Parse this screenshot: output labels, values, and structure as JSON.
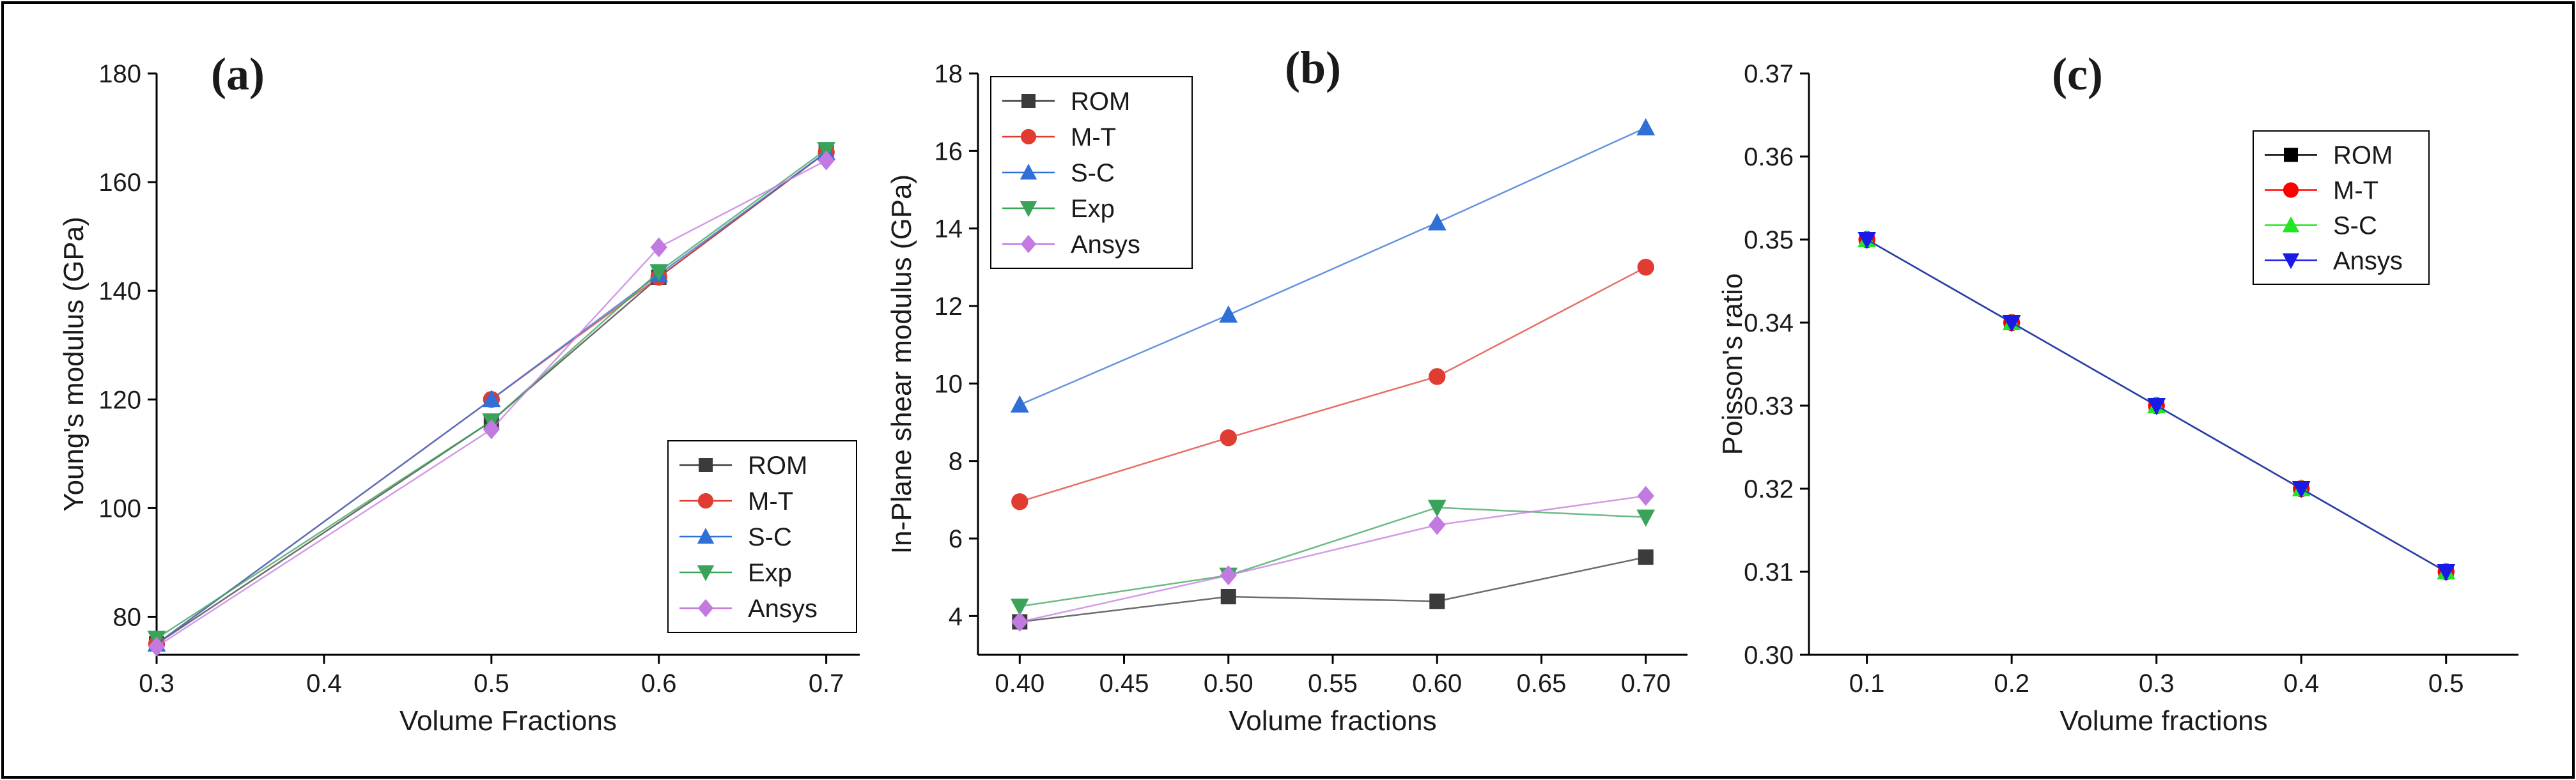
{
  "colors": {
    "ROM": "#3b3b3b",
    "M-T": "#e03c31",
    "S-C": "#2f6fd6",
    "Exp": "#3aa35a",
    "Ansys": "#c27ae0",
    "Ansys_c": "#1a1ae6",
    "S-C_c": "#22e622",
    "ROM_c": "#000000",
    "M-T_c": "#ff0000",
    "axis": "#000000"
  },
  "chart_data": [
    {
      "type": "line",
      "panel_label": "(a)",
      "xlabel": "Volume Fractions",
      "ylabel": "Young's    modulus (GPa)",
      "xlim": [
        0.3,
        0.72
      ],
      "ylim": [
        73,
        180
      ],
      "xticks": [
        0.3,
        0.4,
        0.5,
        0.6,
        0.7
      ],
      "xtick_labels": [
        "0.3",
        "0.4",
        "0.5",
        "0.6",
        "0.7"
      ],
      "yticks": [
        80,
        100,
        120,
        140,
        160,
        180
      ],
      "ytick_labels": [
        "80",
        "100",
        "120",
        "140",
        "160",
        "180"
      ],
      "legend_position": "bottom-right",
      "x": [
        0.3,
        0.5,
        0.6,
        0.7
      ],
      "series": [
        {
          "name": "ROM",
          "marker": "square",
          "values": [
            75,
            116,
            142.5,
            165.5
          ]
        },
        {
          "name": "M-T",
          "marker": "circle",
          "values": [
            75,
            120,
            142.5,
            165.5
          ]
        },
        {
          "name": "S-C",
          "marker": "triangle-up",
          "values": [
            75,
            120,
            143,
            165.5
          ]
        },
        {
          "name": "Exp",
          "marker": "triangle-down",
          "values": [
            76,
            116,
            143.5,
            166
          ]
        },
        {
          "name": "Ansys",
          "marker": "diamond",
          "values": [
            74.5,
            114.5,
            148,
            164
          ]
        }
      ]
    },
    {
      "type": "line",
      "panel_label": "(b)",
      "xlabel": "Volume fractions",
      "ylabel": "In-Plane shear modulus (GPa)",
      "xlim": [
        0.38,
        0.72
      ],
      "ylim": [
        3,
        18
      ],
      "xticks": [
        0.4,
        0.45,
        0.5,
        0.55,
        0.6,
        0.65,
        0.7
      ],
      "xtick_labels": [
        "0.40",
        "0.45",
        "0.50",
        "0.55",
        "0.60",
        "0.65",
        "0.70"
      ],
      "yticks": [
        4,
        6,
        8,
        10,
        12,
        14,
        16,
        18
      ],
      "ytick_labels": [
        "4",
        "6",
        "8",
        "10",
        "12",
        "14",
        "16",
        "18"
      ],
      "legend_position": "top-left",
      "x": [
        0.4,
        0.5,
        0.6,
        0.7
      ],
      "series": [
        {
          "name": "ROM",
          "marker": "square",
          "values": [
            3.85,
            4.5,
            4.38,
            5.52
          ]
        },
        {
          "name": "M-T",
          "marker": "circle",
          "values": [
            6.95,
            8.6,
            10.18,
            13.0
          ]
        },
        {
          "name": "S-C",
          "marker": "triangle-up",
          "values": [
            9.45,
            11.77,
            14.15,
            16.6
          ]
        },
        {
          "name": "Exp",
          "marker": "triangle-down",
          "values": [
            4.25,
            5.05,
            6.8,
            6.55
          ]
        },
        {
          "name": "Ansys",
          "marker": "diamond",
          "values": [
            3.85,
            5.05,
            6.35,
            7.1
          ]
        }
      ]
    },
    {
      "type": "line",
      "panel_label": "(c)",
      "xlabel": "Volume fractions",
      "ylabel": "Poisson's ratio",
      "xlim": [
        0.06,
        0.55
      ],
      "ylim": [
        0.3,
        0.37
      ],
      "xticks": [
        0.1,
        0.2,
        0.3,
        0.4,
        0.5
      ],
      "xtick_labels": [
        "0.1",
        "0.2",
        "0.3",
        "0.4",
        "0.5"
      ],
      "yticks": [
        0.3,
        0.31,
        0.32,
        0.33,
        0.34,
        0.35,
        0.36,
        0.37
      ],
      "ytick_labels": [
        "0.30",
        "0.31",
        "0.32",
        "0.33",
        "0.34",
        "0.35",
        "0.36",
        "0.37"
      ],
      "legend_position": "top-right",
      "x": [
        0.1,
        0.2,
        0.3,
        0.4,
        0.5
      ],
      "series": [
        {
          "name": "ROM",
          "marker": "square",
          "values": [
            0.35,
            0.34,
            0.33,
            0.32,
            0.31
          ]
        },
        {
          "name": "M-T",
          "marker": "circle",
          "values": [
            0.35,
            0.34,
            0.33,
            0.32,
            0.31
          ]
        },
        {
          "name": "S-C",
          "marker": "triangle-up",
          "values": [
            0.35,
            0.34,
            0.33,
            0.32,
            0.31
          ]
        },
        {
          "name": "Ansys",
          "marker": "triangle-down",
          "values": [
            0.35,
            0.34,
            0.33,
            0.32,
            0.31
          ]
        }
      ]
    }
  ]
}
